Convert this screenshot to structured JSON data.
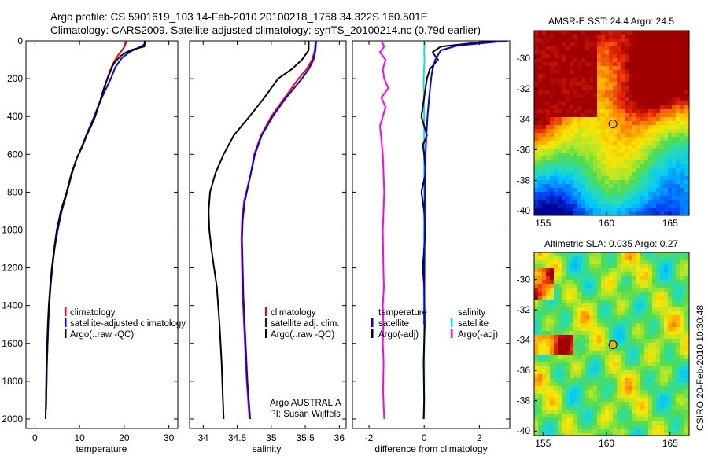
{
  "title_line1": "Argo profile: CS 5901619_103 14-Feb-2010 20100218_1758 34.322S 160.501E",
  "title_line2": "Climatology: CARS2009. Satellite-adjusted climatology: synTS_20100214.nc (0.79d earlier)",
  "footer_stamp": "CSIRO 20-Feb-2010 10:30:48",
  "colors": {
    "climatology": "#ff0000",
    "satellite": "#0000ff",
    "argo": "#000000",
    "argo_salinity_diff": "#ff00ff",
    "satellite_salinity_diff": "#00e5e5"
  },
  "chart_data": [
    {
      "type": "line",
      "xlabel": "temperature",
      "ylabel": "",
      "xlim": [
        -2,
        32
      ],
      "ylim": [
        2050,
        0
      ],
      "xticks": [
        0,
        10,
        20,
        30
      ],
      "yticks": [
        0,
        200,
        400,
        600,
        800,
        1000,
        1200,
        1400,
        1600,
        1800,
        2000
      ],
      "legend": [
        "climatology",
        "satellite-adjusted climatology",
        "Argo(..raw -QC)"
      ],
      "annotations": [],
      "series": [
        {
          "name": "climatology",
          "color": "#ff0000",
          "x": [
            20.5,
            20.2,
            19.5,
            18.5,
            17.5,
            16.8,
            16.2,
            15.6,
            14.9,
            14.1,
            13.3,
            12.4,
            11.5,
            10.5,
            9.4,
            8.3,
            7.2,
            6.0,
            5.1,
            4.4,
            3.9,
            3.5,
            3.2,
            3.0,
            2.7,
            2.5
          ],
          "y": [
            0,
            25,
            50,
            80,
            120,
            160,
            200,
            250,
            300,
            350,
            400,
            450,
            500,
            560,
            620,
            700,
            800,
            900,
            1000,
            1100,
            1200,
            1300,
            1400,
            1500,
            1700,
            1950
          ]
        },
        {
          "name": "satellite-adjusted climatology",
          "color": "#0000ff",
          "x": [
            24.8,
            24.7,
            23.8,
            21.5,
            19.5,
            18.0,
            17.0,
            16.0,
            15.0,
            14.1,
            13.3,
            12.4,
            11.5,
            10.5,
            9.4,
            8.3,
            7.2,
            6.0,
            5.1,
            4.4,
            3.9,
            3.5,
            3.2,
            3.0,
            2.7,
            2.5
          ],
          "y": [
            0,
            15,
            30,
            55,
            90,
            140,
            200,
            250,
            300,
            350,
            400,
            450,
            500,
            560,
            620,
            700,
            800,
            900,
            1000,
            1100,
            1200,
            1300,
            1400,
            1500,
            1700,
            1950
          ]
        },
        {
          "name": "Argo(..raw -QC)",
          "color": "#000000",
          "x": [
            24.6,
            24.5,
            22.0,
            20.5,
            19.2,
            18.0,
            17.2,
            16.6,
            15.9,
            15.2,
            14.6,
            13.5,
            12.6,
            11.6,
            10.6,
            9.4,
            8.2,
            7.1,
            5.8,
            4.9,
            4.3,
            3.8,
            3.4,
            3.1,
            2.9,
            2.6,
            2.4
          ],
          "y": [
            0,
            30,
            45,
            60,
            80,
            110,
            140,
            180,
            220,
            270,
            320,
            400,
            450,
            500,
            560,
            620,
            700,
            800,
            900,
            1000,
            1100,
            1200,
            1300,
            1400,
            1500,
            1700,
            2000
          ]
        }
      ]
    },
    {
      "type": "line",
      "xlabel": "salinity",
      "ylabel": "",
      "xlim": [
        33.8,
        36.1
      ],
      "ylim": [
        2050,
        0
      ],
      "xticks": [
        34,
        34.5,
        35,
        35.5,
        36
      ],
      "yticks": [],
      "legend": [
        "climatology",
        "satellite adj. clim.",
        "Argo(..raw -QC)"
      ],
      "annotations": [
        "Argo AUSTRALIA",
        "PI: Susan Wijffels"
      ],
      "series": [
        {
          "name": "climatology",
          "color": "#ff0000",
          "x": [
            35.65,
            35.64,
            35.6,
            35.52,
            35.4,
            35.2,
            35.0,
            34.85,
            34.75,
            34.7,
            34.6,
            34.57,
            34.56,
            34.57,
            34.58,
            34.6,
            34.62,
            34.64,
            34.66,
            34.68
          ],
          "y": [
            0,
            50,
            100,
            150,
            200,
            300,
            400,
            500,
            600,
            700,
            850,
            950,
            1050,
            1200,
            1350,
            1500,
            1650,
            1800,
            1900,
            2000
          ]
        },
        {
          "name": "satellite adj. clim.",
          "color": "#0000ff",
          "x": [
            35.66,
            35.65,
            35.62,
            35.55,
            35.45,
            35.22,
            35.02,
            34.86,
            34.76,
            34.7,
            34.61,
            34.58,
            34.57,
            34.58,
            34.59,
            34.61,
            34.63,
            34.65,
            34.67,
            34.69
          ],
          "y": [
            0,
            50,
            100,
            150,
            200,
            300,
            400,
            500,
            600,
            700,
            850,
            950,
            1050,
            1200,
            1350,
            1500,
            1650,
            1800,
            1900,
            2000
          ]
        },
        {
          "name": "Argo(..raw -QC)",
          "color": "#000000",
          "x": [
            35.55,
            35.55,
            35.45,
            35.3,
            35.1,
            34.9,
            34.68,
            34.45,
            34.3,
            34.18,
            34.1,
            34.08,
            34.09,
            34.12,
            34.16,
            34.2,
            34.24,
            34.27,
            34.29,
            34.3
          ],
          "y": [
            0,
            50,
            100,
            150,
            200,
            300,
            400,
            500,
            600,
            700,
            800,
            900,
            1000,
            1100,
            1200,
            1300,
            1500,
            1700,
            1900,
            2000
          ]
        }
      ]
    },
    {
      "type": "line",
      "xlabel": "difference from climatology",
      "ylabel": "",
      "xlim": [
        -2.6,
        3.1
      ],
      "ylim": [
        2050,
        0
      ],
      "xticks": [
        -2,
        0,
        2
      ],
      "yticks": [],
      "legend": [
        "temperature",
        "satellite",
        "Argo(-adj)",
        "salinity",
        "satellite",
        "Argo(-adj)"
      ],
      "annotations": [],
      "series": [
        {
          "name": "Argo(-adj)",
          "color": "#ff00ff",
          "x": [
            -1.55,
            -1.45,
            -1.6,
            -1.4,
            -1.5,
            -1.45,
            -1.3,
            -1.55,
            -1.4,
            -1.6,
            -1.5,
            -1.45,
            -1.5,
            -1.48,
            -1.46,
            -1.5,
            -1.48,
            -1.5,
            -1.47,
            -1.49,
            -1.45
          ],
          "y": [
            0,
            30,
            60,
            100,
            150,
            200,
            250,
            300,
            350,
            450,
            600,
            800,
            1000,
            1200,
            1300,
            1400,
            1500,
            1600,
            1700,
            1850,
            2000
          ]
        },
        {
          "name": "satellite",
          "color": "#00e5e5",
          "x": [
            0.02,
            0.0,
            0.01,
            -0.02,
            0.0,
            0.0,
            0.0,
            0.0,
            0.0,
            0.0,
            0.0
          ],
          "y": [
            0,
            50,
            100,
            200,
            400,
            800,
            1200,
            1500,
            1700,
            1900,
            2000
          ]
        },
        {
          "name": "Argo(-adj)",
          "color": "#000000",
          "x": [
            2.5,
            0.6,
            0.3,
            0.5,
            0.2,
            0.1,
            0.0,
            -0.1,
            0.1,
            -0.05,
            0.0,
            0.05,
            -0.1,
            0.0,
            0.05,
            0.0,
            -0.05,
            0.0,
            0.02,
            -0.02,
            0.0,
            -0.02
          ],
          "y": [
            0,
            30,
            60,
            100,
            150,
            200,
            300,
            400,
            500,
            550,
            600,
            700,
            800,
            900,
            1000,
            1100,
            1200,
            1300,
            1500,
            1700,
            1900,
            2000
          ]
        },
        {
          "name": "satellite",
          "color": "#0000ff",
          "x": [
            3.0,
            1.2,
            0.6,
            0.4,
            0.3,
            0.25,
            0.18,
            0.12,
            0.08,
            0.05,
            0.03,
            0.02,
            0.01,
            0.0
          ],
          "y": [
            0,
            25,
            50,
            100,
            150,
            200,
            300,
            400,
            500,
            600,
            700,
            900,
            1200,
            1500
          ]
        }
      ]
    },
    {
      "type": "heatmap",
      "title": "AMSR-E SST: 24.4 Argo: 24.5",
      "xlim": [
        154.3,
        166.5
      ],
      "ylim": [
        -40.3,
        -28.2
      ],
      "xticks": [
        155,
        160,
        165
      ],
      "yticks": [
        -30,
        -32,
        -34,
        -36,
        -38,
        -40
      ],
      "marker": {
        "lon": 160.5,
        "lat": -34.3
      }
    },
    {
      "type": "heatmap",
      "title": "Altimetric SLA: 0.035 Argo: 0.27",
      "xlim": [
        154.3,
        166.5
      ],
      "ylim": [
        -40.3,
        -28.2
      ],
      "xticks": [
        155,
        160,
        165
      ],
      "yticks": [
        -30,
        -32,
        -34,
        -36,
        -38,
        -40
      ],
      "marker": {
        "lon": 160.5,
        "lat": -34.3
      }
    }
  ]
}
